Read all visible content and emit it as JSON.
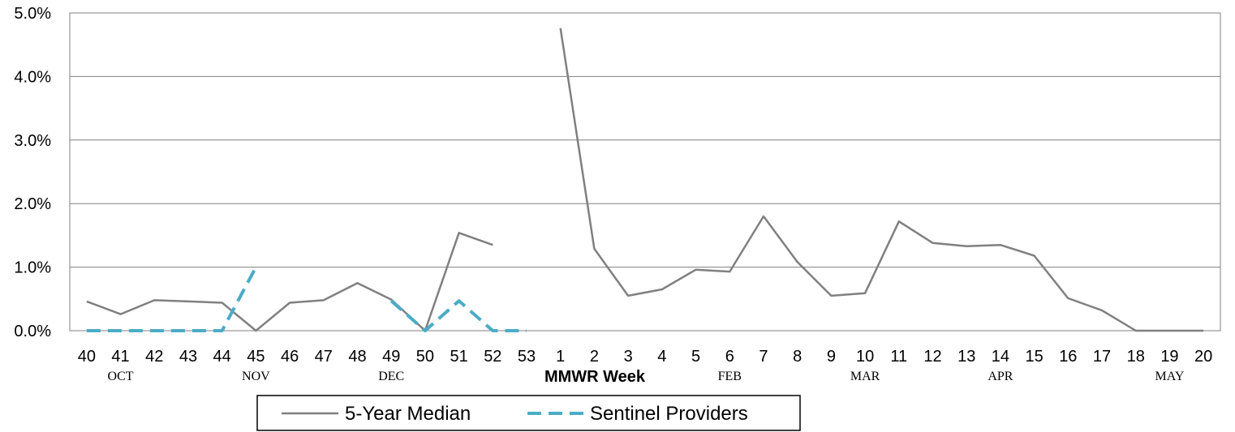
{
  "chart_data": {
    "type": "line",
    "title": "",
    "xlabel": "MMWR Week",
    "ylabel": "",
    "ylim": [
      0,
      5
    ],
    "yticks": [
      "0.0%",
      "1.0%",
      "2.0%",
      "3.0%",
      "4.0%",
      "5.0%"
    ],
    "grid": "horizontal",
    "legend_placement": "bottom",
    "categories": [
      "40",
      "41",
      "42",
      "43",
      "44",
      "45",
      "46",
      "47",
      "48",
      "49",
      "50",
      "51",
      "52",
      "53",
      "1",
      "2",
      "3",
      "4",
      "5",
      "6",
      "7",
      "8",
      "9",
      "10",
      "11",
      "12",
      "13",
      "14",
      "15",
      "16",
      "17",
      "18",
      "19",
      "20"
    ],
    "months": [
      {
        "label": "OCT",
        "week": "41"
      },
      {
        "label": "NOV",
        "week": "45"
      },
      {
        "label": "DEC",
        "week": "49"
      },
      {
        "label": "FEB",
        "week": "6"
      },
      {
        "label": "MAR",
        "week": "10"
      },
      {
        "label": "APR",
        "week": "14"
      },
      {
        "label": "MAY",
        "week": "19"
      }
    ],
    "series": [
      {
        "name": "5-Year Median",
        "color": "#808080",
        "style": "solid",
        "values": [
          0.46,
          0.26,
          0.48,
          0.46,
          0.44,
          0.0,
          0.44,
          0.48,
          0.75,
          0.49,
          0.0,
          1.54,
          1.35,
          null,
          4.76,
          1.29,
          0.55,
          0.65,
          0.96,
          0.93,
          1.8,
          1.08,
          0.55,
          0.59,
          1.72,
          1.38,
          1.33,
          1.35,
          1.18,
          0.51,
          0.32,
          0.0,
          0.0,
          0.0
        ]
      },
      {
        "name": "Sentinel Providers",
        "color": "#4BACC6",
        "style": "dashed",
        "values": [
          0.0,
          0.0,
          0.0,
          0.0,
          0.0,
          1.0,
          null,
          null,
          null,
          0.47,
          0.0,
          0.47,
          0.0,
          0.0,
          null,
          null,
          null,
          null,
          null,
          null,
          null,
          null,
          null,
          null,
          null,
          null,
          null,
          null,
          null,
          null,
          null,
          null,
          null,
          null
        ]
      }
    ]
  }
}
